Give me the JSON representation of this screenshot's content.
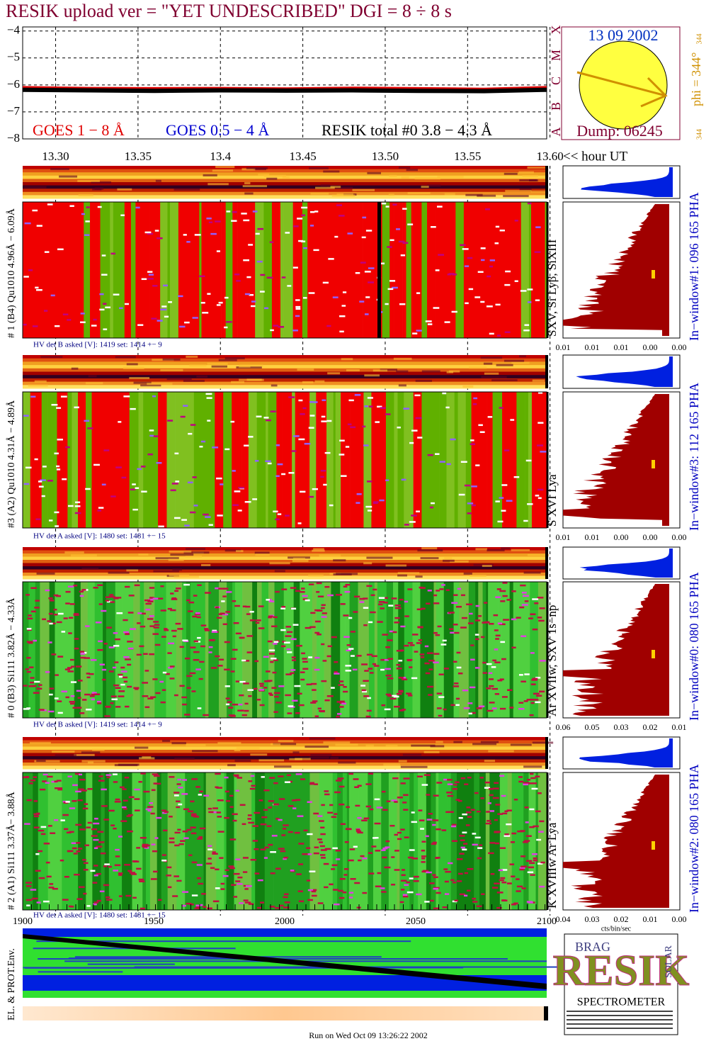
{
  "header": {
    "title": "RESIK upload ver = \"YET UNDESCRIBED\"  DGI =   8 ÷   8 s"
  },
  "chart_data": {
    "type": "line",
    "x": [
      13.28,
      13.32,
      13.36,
      13.4,
      13.44,
      13.48,
      13.52,
      13.56,
      13.598
    ],
    "xlim": [
      13.28,
      13.598
    ],
    "xticks": [
      {
        "value": 13.3,
        "label": "13.30"
      },
      {
        "value": 13.35,
        "label": "13.35"
      },
      13.4,
      13.45,
      {
        "value": 13.5,
        "label": "13.50"
      },
      13.55,
      {
        "value": 13.6,
        "label": "13.60"
      }
    ],
    "x_label": "<< hour UT",
    "ylim": [
      -8,
      -3.85
    ],
    "yticks": [
      {
        "value": -4,
        "label": "−4"
      },
      {
        "value": -5,
        "label": "−5"
      },
      {
        "value": -6,
        "label": "−6"
      },
      {
        "value": -7,
        "label": "−7"
      },
      {
        "value": -8,
        "label": "−8"
      }
    ],
    "grid": true,
    "series": [
      {
        "name": "GOES 1 − 8 Å",
        "color": "#e00000",
        "values": [
          -6.12,
          -6.15,
          -6.16,
          -6.15,
          -6.17,
          -6.14,
          -6.16,
          -6.18,
          -6.12
        ]
      },
      {
        "name": "GOES 0.5 − 4 Å",
        "color": "#0000d0",
        "values": [
          null,
          null,
          null,
          null,
          null,
          null,
          null,
          null,
          null
        ]
      },
      {
        "name": "RESIK total #0  3.8 − 4.3 Å",
        "color": "#000000",
        "values": [
          -6.18,
          -6.2,
          -6.22,
          -6.2,
          -6.21,
          -6.2,
          -6.22,
          -6.23,
          -6.18
        ]
      }
    ]
  },
  "sun": {
    "date": "13 09 2002",
    "dump": "Dump: 06245",
    "phi": "phi = 344°",
    "phi_small": "344",
    "corner": "344",
    "classes": [
      "A",
      "B",
      "C",
      "M",
      "X"
    ]
  },
  "panels": [
    {
      "label": "# 1 (B4) Qu1010 4.96Å − 6.09Å",
      "lines": "SXV, Si Lyβ, SiXIII",
      "hv": "HV det B asked [V]:  1419 set:  1414 +−   9",
      "window": "In−window#1:  096 165 PHA",
      "pha_ticks": [
        "0.01",
        "0.01",
        "0.01",
        "0.00",
        "0.00"
      ]
    },
    {
      "label": "#3 (A2) Qu1010  4.31Å  − 4.89Å",
      "lines": "S XVI Lya",
      "hv": "HV det A asked [V]:  1480 set:  1481  +−    15",
      "window": "In−window#3:  112 165 PHA",
      "pha_ticks": [
        "0.01",
        "0.01",
        "0.00",
        "0.00",
        "0.00"
      ]
    },
    {
      "label": "# 0 (B3) Si111  3.82Å − 4.33Å",
      "lines": "Ar XVIIw,  SXV 1s−np",
      "hv": "HV det B asked [V]:  1419 set:  1414 +−   9",
      "window": "In−window#0:  080 165 PHA",
      "pha_ticks": [
        "0.06",
        "0.05",
        "0.03",
        "0.02",
        "0.01"
      ]
    },
    {
      "label": "# 2 (A1) Si111  3.37Å− 3.88Å",
      "lines": "K XVIIIw  Ar Lya",
      "hv": "HV det A asked [V]:  1480 set:  1481  +−    15",
      "window": "In−window#2:  080 165 PHA",
      "pha_ticks": [
        "0.04",
        "0.03",
        "0.02",
        "0.01",
        "0.00"
      ]
    }
  ],
  "pha_unit": "cts/bin/sec",
  "env": {
    "label": "EL. & PROT.Env.",
    "ticks": [
      "1900",
      "1950",
      "2000",
      "2050",
      "2100"
    ]
  },
  "logo": {
    "name": "RESIK",
    "small": [
      "BRAG",
      "SOLAR"
    ],
    "bottom": "SPECTROMETER"
  },
  "footer": "Run on Wed Oct 09 13:26:22 2002"
}
